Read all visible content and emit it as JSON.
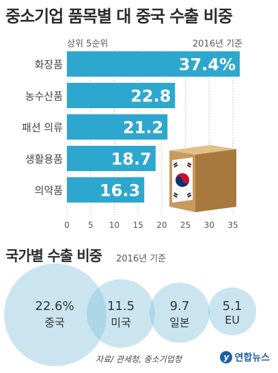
{
  "title": "중소기업 품목별 대 중국 수출 비중",
  "subtitle_left": "상위 5순위",
  "subtitle_right": "2016년 기준",
  "section2": {
    "title": "국가별 수출 비중",
    "note": "2016년 기준"
  },
  "bubbles": [
    {
      "value": "22.6%",
      "label": "중국"
    },
    {
      "value": "11.5",
      "label": "미국"
    },
    {
      "value": "9.7",
      "label": "일본"
    },
    {
      "value": "5.1",
      "label": "EU"
    }
  ],
  "source": "자료/ 관세청, 중소기업청",
  "logo": "연합뉴스",
  "colors": {
    "bar": "#2ea7cf",
    "bubble": "#89c6dd",
    "grid": "#c8c8c8"
  },
  "chart_data": {
    "type": "bar",
    "orientation": "horizontal",
    "categories": [
      "화장품",
      "농수산품",
      "패션 의류",
      "생활용품",
      "의약품"
    ],
    "values": [
      37.4,
      22.8,
      21.2,
      18.7,
      16.3
    ],
    "value_labels": [
      "37.4%",
      "22.8",
      "21.2",
      "18.7",
      "16.3"
    ],
    "xlim": [
      0,
      35
    ],
    "xticks": [
      "0",
      "5",
      "10",
      "15",
      "20",
      "25",
      "30",
      "35"
    ],
    "grid": true
  }
}
